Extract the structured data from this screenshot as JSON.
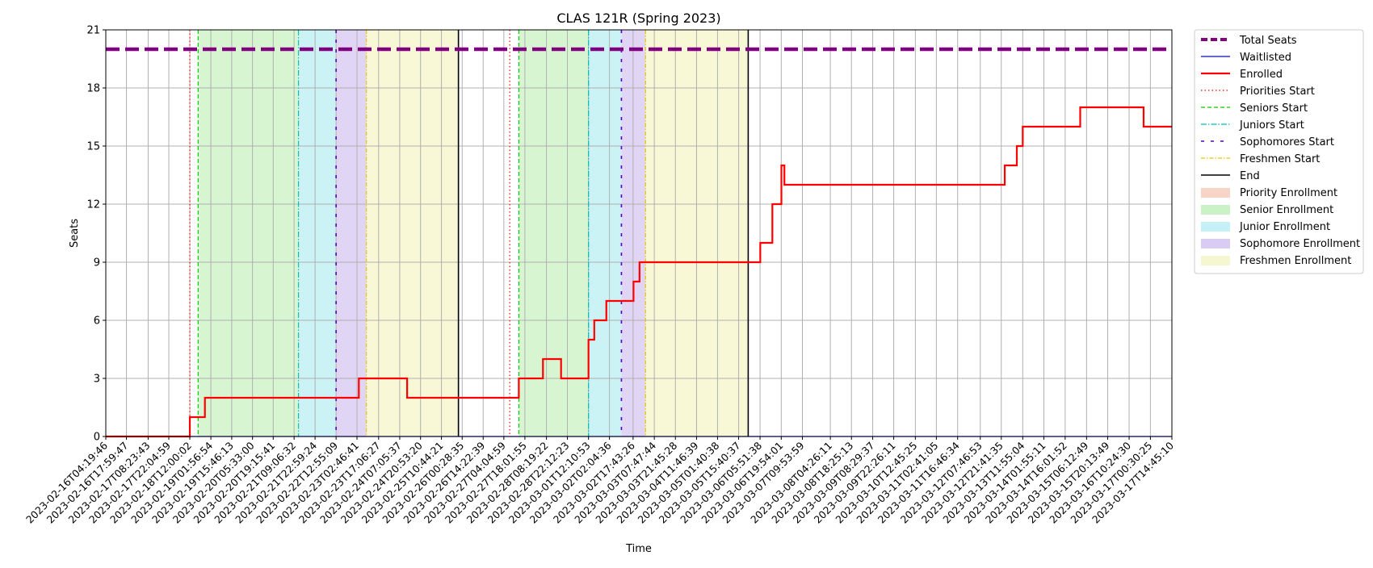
{
  "chart_data": {
    "type": "line",
    "title": "CLAS 121R (Spring 2023)",
    "xlabel": "Time",
    "ylabel": "Seats",
    "ylim": [
      0,
      21
    ],
    "yticks": [
      0,
      3,
      6,
      9,
      12,
      15,
      18,
      21
    ],
    "grid": true,
    "legend_position": "outside right",
    "x_tick_labels": [
      "2023-02-16T04:19:46",
      "2023-02-16T17:59:47",
      "2023-02-17T08:23:43",
      "2023-02-17T22:04:59",
      "2023-02-18T12:00:02",
      "2023-02-19T01:56:54",
      "2023-02-19T15:46:13",
      "2023-02-20T05:33:00",
      "2023-02-20T19:15:41",
      "2023-02-21T09:06:32",
      "2023-02-21T22:59:24",
      "2023-02-22T12:55:09",
      "2023-02-23T02:46:41",
      "2023-02-23T17:06:27",
      "2023-02-24T07:05:37",
      "2023-02-24T20:53:20",
      "2023-02-25T10:44:21",
      "2023-02-26T00:28:35",
      "2023-02-26T14:22:39",
      "2023-02-27T04:04:59",
      "2023-02-27T18:01:55",
      "2023-02-28T08:19:22",
      "2023-02-28T22:12:23",
      "2023-03-01T12:10:53",
      "2023-03-02T02:04:36",
      "2023-03-02T17:43:26",
      "2023-03-03T07:47:44",
      "2023-03-03T21:45:28",
      "2023-03-04T11:46:39",
      "2023-03-05T01:40:38",
      "2023-03-05T15:40:37",
      "2023-03-06T05:51:38",
      "2023-03-06T19:54:01",
      "2023-03-07T09:53:59",
      "2023-03-08T04:26:11",
      "2023-03-08T18:25:13",
      "2023-03-09T08:29:37",
      "2023-03-09T22:26:11",
      "2023-03-10T12:45:25",
      "2023-03-11T02:41:05",
      "2023-03-11T16:46:34",
      "2023-03-12T07:46:53",
      "2023-03-12T21:41:35",
      "2023-03-13T11:55:04",
      "2023-03-14T01:55:11",
      "2023-03-14T16:01:52",
      "2023-03-15T06:12:49",
      "2023-03-15T20:13:49",
      "2023-03-16T10:24:30",
      "2023-03-17T00:30:25",
      "2023-03-17T14:45:10"
    ],
    "total_seats": 20,
    "series": [
      {
        "name": "Total Seats",
        "color": "#800080",
        "style": "dashed",
        "points": [
          [
            "2023-02-16T04:19:46",
            20
          ],
          [
            "2023-03-17T14:45:10",
            20
          ]
        ]
      },
      {
        "name": "Waitlisted",
        "color": "#0000ff",
        "style": "solid",
        "points": [
          [
            "2023-02-16T04:19:46",
            0
          ],
          [
            "2023-03-17T14:45:10",
            0
          ]
        ]
      },
      {
        "name": "Enrolled",
        "color": "#ff0000",
        "style": "step",
        "points": [
          [
            "2023-02-16T04:19:46",
            0
          ],
          [
            "2023-02-18T12:00:02",
            1
          ],
          [
            "2023-02-18T22:00:00",
            2
          ],
          [
            "2023-02-23T04:00:00",
            3
          ],
          [
            "2023-02-24T12:00:00",
            2
          ],
          [
            "2023-02-27T14:00:00",
            3
          ],
          [
            "2023-02-28T06:00:00",
            4
          ],
          [
            "2023-02-28T18:00:00",
            3
          ],
          [
            "2023-03-01T12:10:53",
            5
          ],
          [
            "2023-03-01T16:00:00",
            6
          ],
          [
            "2023-03-02T00:00:00",
            7
          ],
          [
            "2023-03-02T18:00:00",
            8
          ],
          [
            "2023-03-02T22:00:00",
            9
          ],
          [
            "2023-03-06T06:00:00",
            10
          ],
          [
            "2023-03-06T14:00:00",
            12
          ],
          [
            "2023-03-06T20:00:00",
            14
          ],
          [
            "2023-03-06T22:00:00",
            13
          ],
          [
            "2023-03-13T00:00:00",
            14
          ],
          [
            "2023-03-13T08:00:00",
            15
          ],
          [
            "2023-03-13T11:55:04",
            16
          ],
          [
            "2023-03-15T02:00:00",
            17
          ],
          [
            "2023-03-16T20:00:00",
            16
          ],
          [
            "2023-03-17T14:45:10",
            16
          ]
        ]
      }
    ],
    "periods": [
      {
        "priorities_start": "2023-02-18T12:00:02",
        "seniors_start": "2023-02-18T17:30:00",
        "juniors_start": "2023-02-21T12:00:00",
        "sophomores_start": "2023-02-22T12:55:09",
        "freshmen_start": "2023-02-23T09:00:00",
        "end": "2023-02-25T22:00:00"
      },
      {
        "priorities_start": "2023-02-27T08:00:00",
        "seniors_start": "2023-02-27T14:00:00",
        "juniors_start": "2023-03-01T12:10:53",
        "sophomores_start": "2023-03-02T10:00:00",
        "freshmen_start": "2023-03-03T02:00:00",
        "end": "2023-03-05T22:00:00"
      }
    ],
    "legend": [
      {
        "label": "Total Seats",
        "kind": "line",
        "color": "#800080",
        "dash": "8,4",
        "width": 4
      },
      {
        "label": "Waitlisted",
        "kind": "line",
        "color": "#0000ff",
        "dash": "",
        "width": 1.2
      },
      {
        "label": "Enrolled",
        "kind": "line",
        "color": "#ff0000",
        "dash": "",
        "width": 2.2
      },
      {
        "label": "Priorities Start",
        "kind": "line",
        "color": "#ff0000",
        "dash": "1.5,3",
        "width": 1.2
      },
      {
        "label": "Seniors Start",
        "kind": "line",
        "color": "#00cc00",
        "dash": "5,3",
        "width": 1.2
      },
      {
        "label": "Juniors Start",
        "kind": "line",
        "color": "#00bfbf",
        "dash": "7,2,1.5,2",
        "width": 1.2
      },
      {
        "label": "Sophomores Start",
        "kind": "line",
        "color": "#5500cc",
        "dash": "4,8",
        "width": 1.6
      },
      {
        "label": "Freshmen Start",
        "kind": "line",
        "color": "#e5c700",
        "dash": "5,2,1.5,2",
        "width": 1.2
      },
      {
        "label": "End",
        "kind": "line",
        "color": "#000000",
        "dash": "",
        "width": 1.5
      },
      {
        "label": "Priority Enrollment",
        "kind": "patch",
        "color": "#f4b8a0"
      },
      {
        "label": "Senior Enrollment",
        "kind": "patch",
        "color": "#a8e8a0"
      },
      {
        "label": "Junior Enrollment",
        "kind": "patch",
        "color": "#9ee6ee"
      },
      {
        "label": "Sophomore Enrollment",
        "kind": "patch",
        "color": "#c0a8ea"
      },
      {
        "label": "Freshmen Enrollment",
        "kind": "patch",
        "color": "#f0f0b0"
      }
    ],
    "colors": {
      "senior_fill": "#d8f5d2",
      "junior_fill": "#cbf2f4",
      "sophomore_fill": "#e1d5f5",
      "freshmen_fill": "#f8f8d6",
      "grid": "#b0b0b0"
    }
  }
}
